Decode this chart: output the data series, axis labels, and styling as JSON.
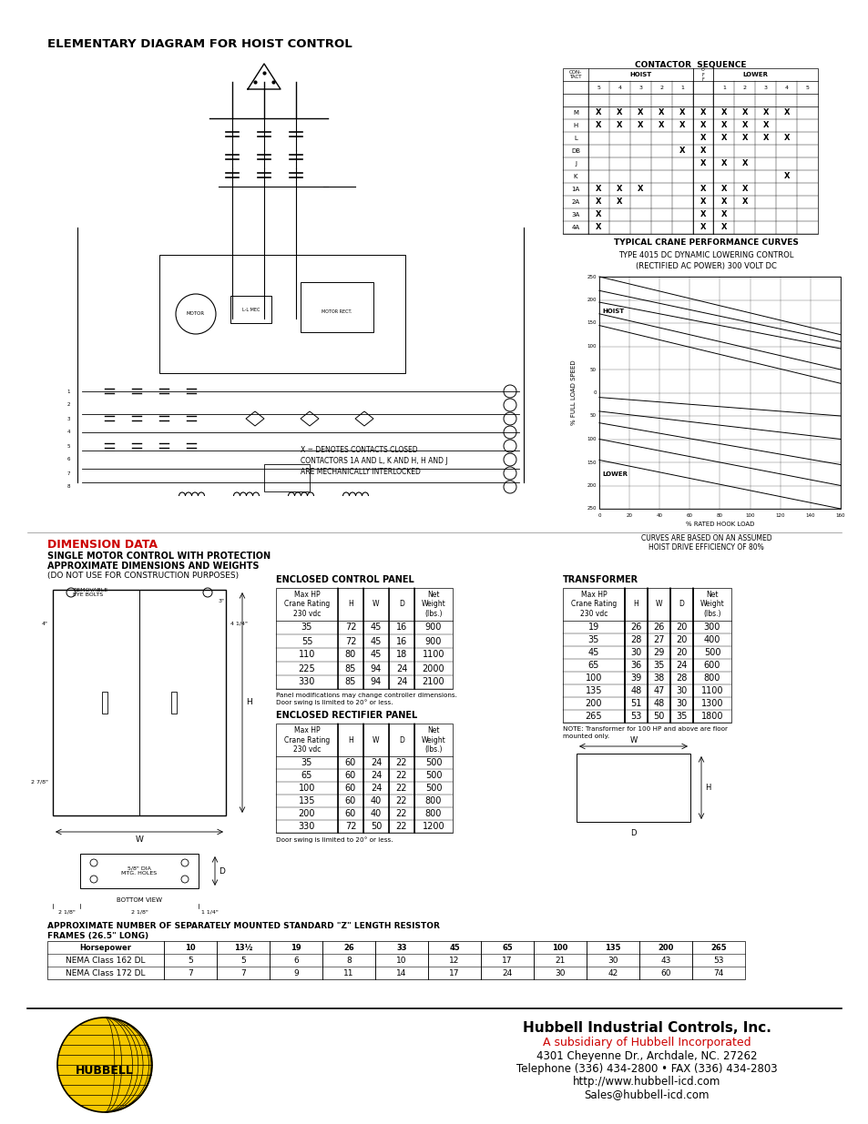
{
  "title": "ELEMENTARY DIAGRAM FOR HOIST CONTROL",
  "bg_color": "#ffffff",
  "dimension_data_title": "DIMENSION DATA",
  "dimension_subtitle1": "SINGLE MOTOR CONTROL WITH PROTECTION",
  "dimension_subtitle2": "APPROXIMATE DIMENSIONS AND WEIGHTS",
  "dimension_subtitle3": "(DO NOT USE FOR CONSTRUCTION PURPOSES)",
  "enclosed_panel_title": "ENCLOSED CONTROL PANEL",
  "enclosed_panel_headers": [
    "Max HP\nCrane Rating\n230 vdc",
    "H",
    "W",
    "D",
    "Net\nWeight\n(lbs.)"
  ],
  "enclosed_panel_data": [
    [
      "35",
      "72",
      "45",
      "16",
      "900"
    ],
    [
      "55",
      "72",
      "45",
      "16",
      "900"
    ],
    [
      "110",
      "80",
      "45",
      "18",
      "1100"
    ],
    [
      "225",
      "85",
      "94",
      "24",
      "2000"
    ],
    [
      "330",
      "85",
      "94",
      "24",
      "2100"
    ]
  ],
  "enclosed_panel_note": "Panel modifications may change controller dimensions.\nDoor swing is limited to 20° or less.",
  "rectifier_panel_title": "ENCLOSED RECTIFIER PANEL",
  "rectifier_panel_headers": [
    "Max HP\nCrane Rating\n230 vdc",
    "H",
    "W",
    "D",
    "Net\nWeight\n(lbs.)"
  ],
  "rectifier_panel_data": [
    [
      "35",
      "60",
      "24",
      "22",
      "500"
    ],
    [
      "65",
      "60",
      "24",
      "22",
      "500"
    ],
    [
      "100",
      "60",
      "24",
      "22",
      "500"
    ],
    [
      "135",
      "60",
      "40",
      "22",
      "800"
    ],
    [
      "200",
      "60",
      "40",
      "22",
      "800"
    ],
    [
      "330",
      "72",
      "50",
      "22",
      "1200"
    ]
  ],
  "rectifier_panel_note": "Door swing is limited to 20° or less.",
  "transformer_title": "TRANSFORMER",
  "transformer_headers": [
    "Max HP\nCrane Rating\n230 vdc",
    "H",
    "W",
    "D",
    "Net\nWeight\n(lbs.)"
  ],
  "transformer_data": [
    [
      "19",
      "26",
      "26",
      "20",
      "300"
    ],
    [
      "35",
      "28",
      "27",
      "20",
      "400"
    ],
    [
      "45",
      "30",
      "29",
      "20",
      "500"
    ],
    [
      "65",
      "36",
      "35",
      "24",
      "600"
    ],
    [
      "100",
      "39",
      "38",
      "28",
      "800"
    ],
    [
      "135",
      "48",
      "47",
      "30",
      "1100"
    ],
    [
      "200",
      "51",
      "48",
      "30",
      "1300"
    ],
    [
      "265",
      "53",
      "50",
      "35",
      "1800"
    ]
  ],
  "transformer_note": "NOTE: Transformer for 100 HP and above are floor\nmounted only.",
  "resistor_title": "APPROXIMATE NUMBER OF SEPARATELY MOUNTED STANDARD \"Z\" LENGTH RESISTOR\nFRAMES (26.5\" LONG)",
  "resistor_hp": [
    "10",
    "13½",
    "19",
    "26",
    "33",
    "45",
    "65",
    "100",
    "135",
    "200",
    "265"
  ],
  "resistor_162_vals": [
    "5",
    "5",
    "6",
    "8",
    "10",
    "12",
    "17",
    "21",
    "30",
    "43",
    "53"
  ],
  "resistor_172_vals": [
    "7",
    "7",
    "9",
    "11",
    "14",
    "17",
    "24",
    "30",
    "42",
    "60",
    "74"
  ],
  "curves_note": "CURVES ARE BASED ON AN ASSUMED\nHOIST DRIVE EFFICIENCY OF 80%",
  "company_name": "Hubbell Industrial Controls, Inc.",
  "company_subsidiary": "A subsidiary of Hubbell Incorporated",
  "company_address": "4301 Cheyenne Dr., Archdale, NC. 27262",
  "company_phone": "Telephone (336) 434-2800 • FAX (336) 434-2803",
  "company_web": "http://www.hubbell-icd.com",
  "company_email": "Sales@hubbell-icd.com",
  "red_color": "#cc0000",
  "hubbell_yellow": "#f5c800",
  "contactor_rows": [
    "M",
    "H",
    "L",
    "DB",
    "J",
    "K",
    "1A",
    "2A",
    "3A",
    "4A"
  ],
  "contactor_x_marks": {
    "M": [
      0,
      1,
      2,
      3,
      4,
      5,
      6,
      7,
      8,
      9
    ],
    "H": [
      0,
      1,
      2,
      3,
      4,
      5,
      6,
      7,
      8
    ],
    "L": [
      5,
      6,
      7,
      8,
      9
    ],
    "DB": [
      4,
      5
    ],
    "J": [
      5,
      6,
      7
    ],
    "K": [
      9
    ],
    "1A": [
      0,
      1,
      2,
      5,
      6,
      7
    ],
    "2A": [
      0,
      1,
      5,
      6,
      7
    ],
    "3A": [
      0,
      5,
      6
    ],
    "4A": [
      0,
      5,
      6
    ]
  }
}
